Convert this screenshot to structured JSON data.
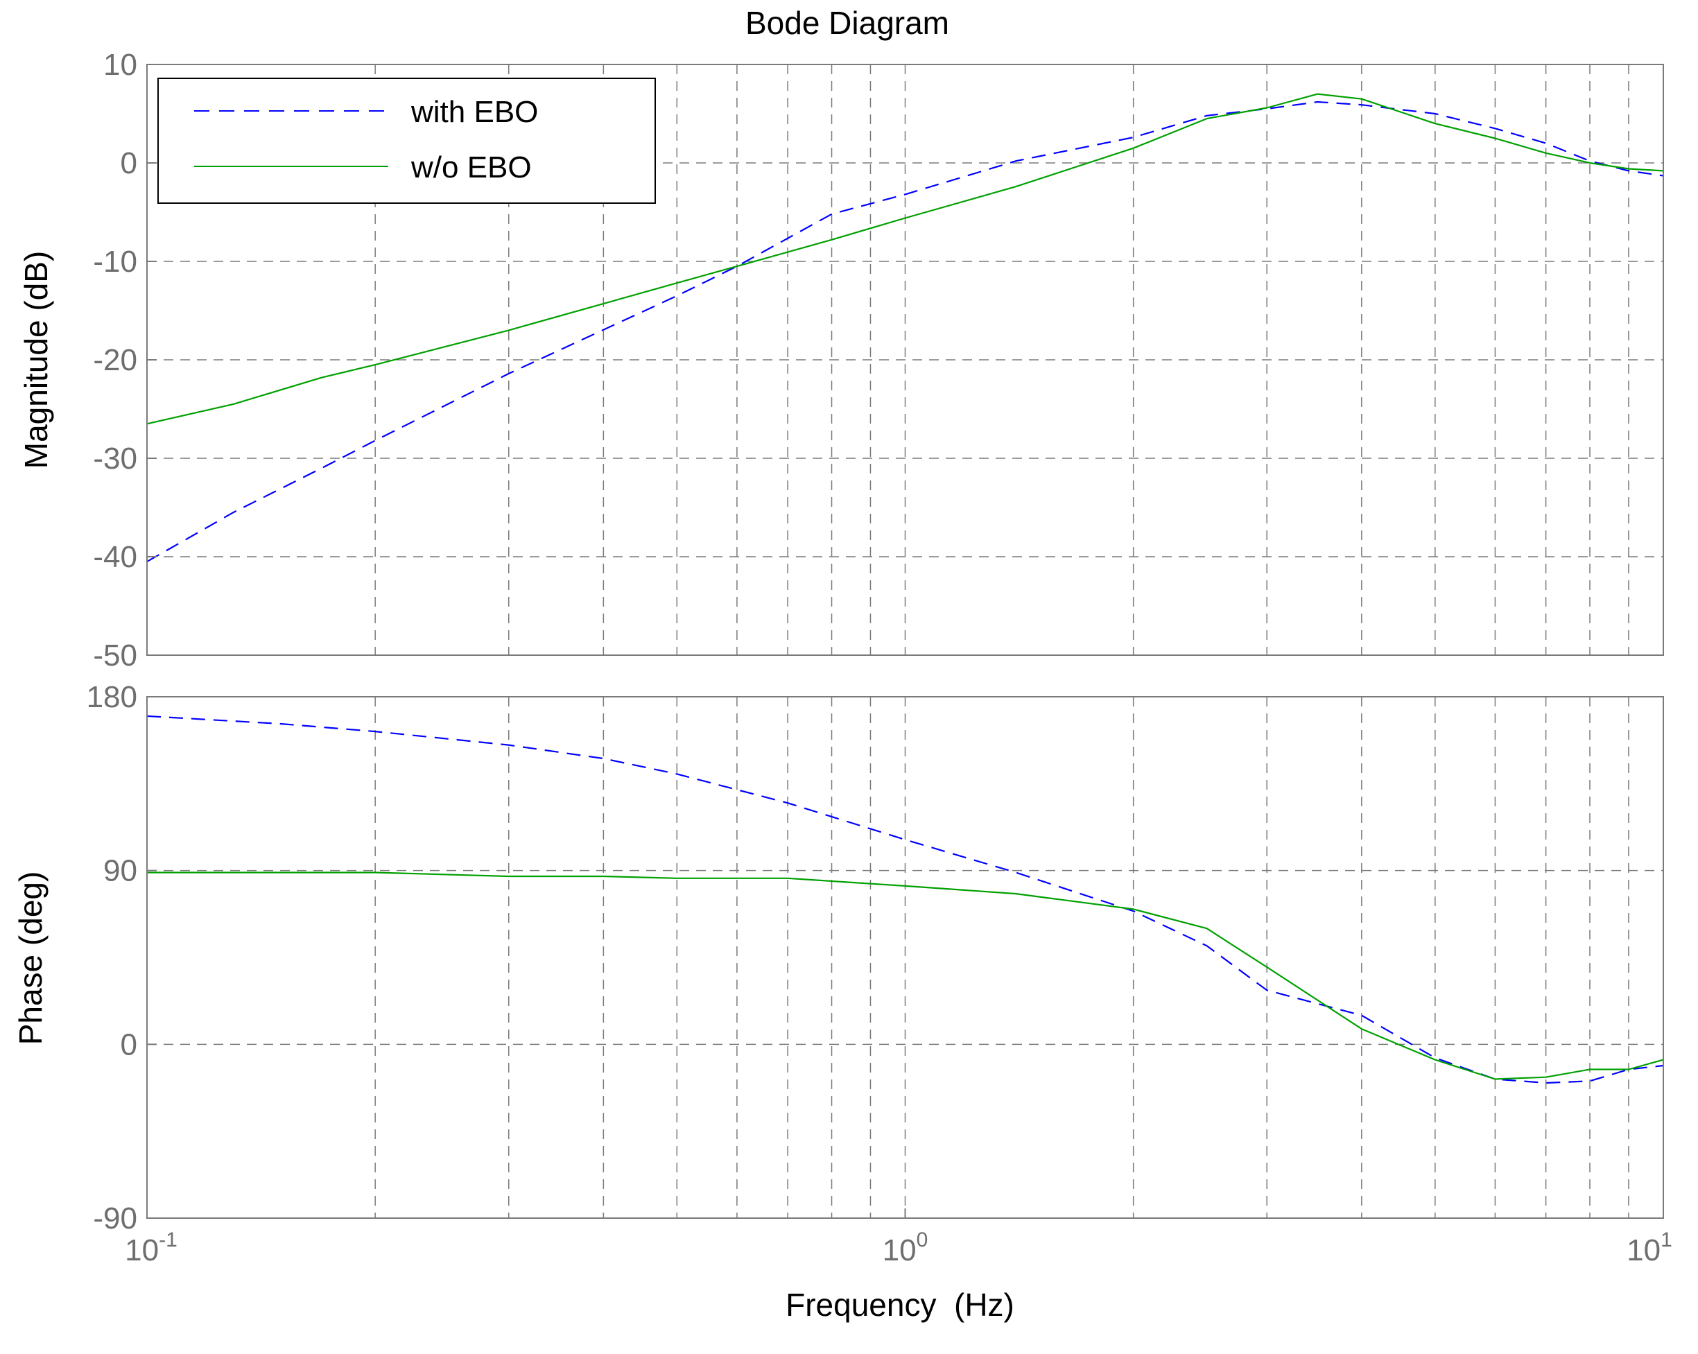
{
  "chart_data": {
    "type": "line",
    "title": "Bode Diagram",
    "xlabel": "Frequency  (Hz)",
    "xscale": "log",
    "xlim": [
      0.1,
      10
    ],
    "x_ticks": [
      {
        "base": "10",
        "exp": "-1"
      },
      {
        "base": "10",
        "exp": "0"
      },
      {
        "base": "10",
        "exp": "1"
      }
    ],
    "grid": true,
    "legend": {
      "position": "top-left",
      "entries": [
        "with EBO",
        "w/o EBO"
      ]
    },
    "colors": {
      "with_ebo": "#0000ff",
      "wo_ebo": "#00a000",
      "grid": "#7a7a7a",
      "axis": "#7a7a7a"
    },
    "panels": [
      {
        "ylabel": "Magnitude (dB)",
        "ylim": [
          -50,
          10
        ],
        "yticks": [
          "10",
          "0",
          "-10",
          "-20",
          "-30",
          "-40",
          "-50"
        ],
        "series": [
          {
            "name": "with EBO",
            "style": "dashed",
            "x": [
              0.1,
              0.13,
              0.17,
              0.2,
              0.3,
              0.5,
              0.6,
              0.8,
              1.0,
              1.4,
              2.0,
              2.5,
              3.0,
              3.5,
              4.0,
              5.0,
              6.0,
              7.0,
              8.0,
              9.0,
              10.0
            ],
            "y": [
              -40.5,
              -35.5,
              -31,
              -28.2,
              -21.4,
              -13.5,
              -10.5,
              -5.2,
              -3.2,
              0.2,
              2.6,
              4.8,
              5.5,
              6.2,
              5.9,
              5.0,
              3.5,
              2.0,
              0.2,
              -0.8,
              -1.3
            ]
          },
          {
            "name": "w/o EBO",
            "style": "solid",
            "x": [
              0.1,
              0.13,
              0.17,
              0.2,
              0.3,
              0.5,
              0.6,
              0.8,
              1.0,
              1.4,
              2.0,
              2.5,
              3.0,
              3.5,
              4.0,
              5.0,
              6.0,
              7.0,
              8.0,
              9.0,
              10.0
            ],
            "y": [
              -26.5,
              -24.5,
              -21.8,
              -20.5,
              -17,
              -12.2,
              -10.5,
              -7.8,
              -5.6,
              -2.4,
              1.5,
              4.5,
              5.6,
              7.0,
              6.5,
              4.0,
              2.5,
              1.0,
              0.0,
              -0.6,
              -0.8
            ]
          }
        ]
      },
      {
        "ylabel": "Phase (deg)",
        "ylim": [
          -90,
          180
        ],
        "yticks": [
          "180",
          "90",
          "0",
          "-90"
        ],
        "series": [
          {
            "name": "with EBO",
            "style": "dashed",
            "x": [
              0.1,
              0.15,
              0.2,
              0.3,
              0.4,
              0.5,
              0.7,
              1.0,
              1.4,
              2.0,
              2.5,
              3.0,
              4.0,
              5.0,
              6.0,
              7.0,
              8.0,
              9.0,
              10.0
            ],
            "y": [
              170,
              166,
              162,
              155,
              148,
              140,
              125,
              106,
              89,
              69,
              51,
              28,
              15,
              -7,
              -18,
              -20,
              -19,
              -13,
              -11
            ]
          },
          {
            "name": "w/o EBO",
            "style": "solid",
            "x": [
              0.1,
              0.15,
              0.2,
              0.3,
              0.4,
              0.5,
              0.7,
              1.0,
              1.4,
              2.0,
              2.5,
              3.0,
              4.0,
              5.0,
              6.0,
              7.0,
              8.0,
              9.0,
              10.0
            ],
            "y": [
              89,
              89,
              89,
              87,
              87,
              86,
              86,
              82,
              78,
              70,
              60,
              40,
              8,
              -8,
              -18,
              -17,
              -13,
              -13,
              -8
            ]
          }
        ]
      }
    ]
  }
}
